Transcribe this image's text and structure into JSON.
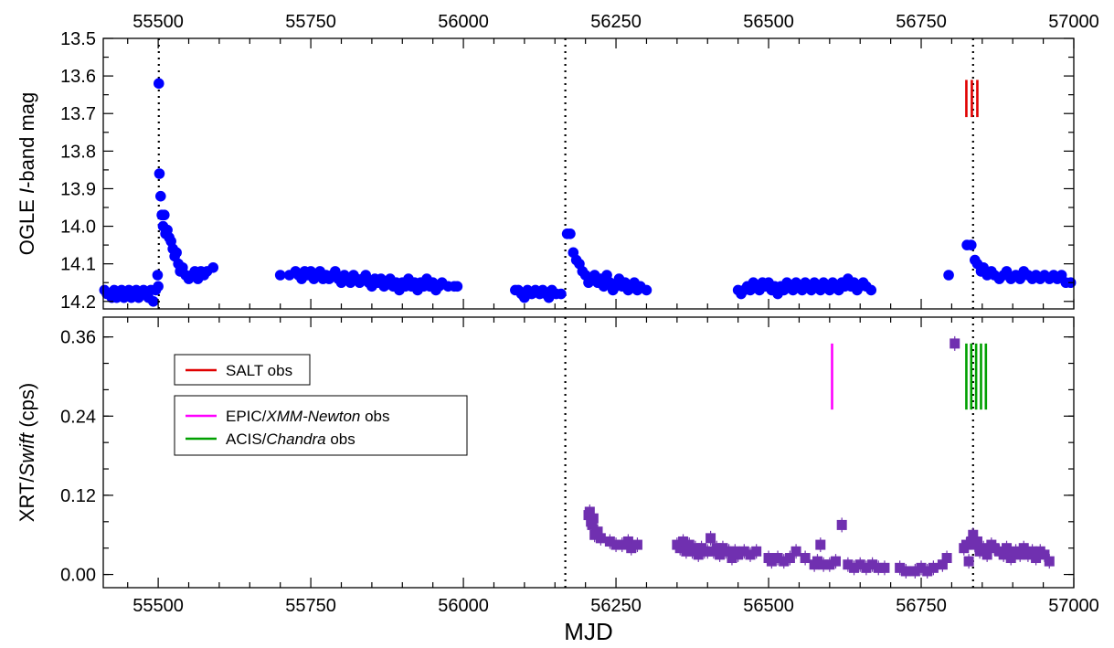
{
  "chart_data": [
    {
      "type": "scatter",
      "panel": "top",
      "ylabel_prefix": "OGLE ",
      "ylabel_italic": "I",
      "ylabel_suffix": "-band mag",
      "xlabel": "",
      "top_axis_ticks": [
        "55500",
        "55750",
        "56000",
        "56250",
        "56500",
        "56750",
        "57000"
      ],
      "xlim": [
        55410,
        57000
      ],
      "ylim": [
        13.5,
        14.22
      ],
      "y_inverted": true,
      "yticks": [
        "13.5",
        "13.6",
        "13.7",
        "13.8",
        "13.9",
        "14.0",
        "14.1",
        "14.2"
      ],
      "marker_color": "#0000ff",
      "marker": "circle",
      "ogle_points": [
        [
          55412,
          14.17
        ],
        [
          55416,
          14.18
        ],
        [
          55420,
          14.18
        ],
        [
          55424,
          14.19
        ],
        [
          55428,
          14.17
        ],
        [
          55432,
          14.19
        ],
        [
          55436,
          14.18
        ],
        [
          55440,
          14.17
        ],
        [
          55444,
          14.19
        ],
        [
          55448,
          14.18
        ],
        [
          55452,
          14.17
        ],
        [
          55456,
          14.19
        ],
        [
          55460,
          14.18
        ],
        [
          55464,
          14.17
        ],
        [
          55468,
          14.19
        ],
        [
          55472,
          14.18
        ],
        [
          55476,
          14.17
        ],
        [
          55480,
          14.18
        ],
        [
          55484,
          14.19
        ],
        [
          55488,
          14.17
        ],
        [
          55492,
          14.2
        ],
        [
          55496,
          14.17
        ],
        [
          55499,
          14.13
        ],
        [
          55500,
          14.16
        ],
        [
          55501,
          13.62
        ],
        [
          55502,
          13.86
        ],
        [
          55504,
          13.92
        ],
        [
          55506,
          13.97
        ],
        [
          55508,
          14.0
        ],
        [
          55510,
          13.97
        ],
        [
          55512,
          14.02
        ],
        [
          55515,
          14.01
        ],
        [
          55518,
          14.03
        ],
        [
          55521,
          14.04
        ],
        [
          55524,
          14.06
        ],
        [
          55527,
          14.08
        ],
        [
          55530,
          14.07
        ],
        [
          55533,
          14.1
        ],
        [
          55536,
          14.12
        ],
        [
          55540,
          14.11
        ],
        [
          55545,
          14.13
        ],
        [
          55550,
          14.14
        ],
        [
          55555,
          14.13
        ],
        [
          55560,
          14.12
        ],
        [
          55565,
          14.14
        ],
        [
          55570,
          14.12
        ],
        [
          55575,
          14.13
        ],
        [
          55580,
          14.12
        ],
        [
          55590,
          14.11
        ],
        [
          55700,
          14.13
        ],
        [
          55715,
          14.13
        ],
        [
          55725,
          14.12
        ],
        [
          55730,
          14.13
        ],
        [
          55735,
          14.14
        ],
        [
          55740,
          14.12
        ],
        [
          55745,
          14.13
        ],
        [
          55750,
          14.12
        ],
        [
          55755,
          14.14
        ],
        [
          55760,
          14.13
        ],
        [
          55765,
          14.12
        ],
        [
          55770,
          14.14
        ],
        [
          55775,
          14.13
        ],
        [
          55780,
          14.14
        ],
        [
          55785,
          14.13
        ],
        [
          55790,
          14.12
        ],
        [
          55795,
          14.14
        ],
        [
          55800,
          14.15
        ],
        [
          55805,
          14.13
        ],
        [
          55810,
          14.14
        ],
        [
          55815,
          14.15
        ],
        [
          55820,
          14.13
        ],
        [
          55825,
          14.14
        ],
        [
          55830,
          14.15
        ],
        [
          55835,
          14.14
        ],
        [
          55840,
          14.13
        ],
        [
          55845,
          14.15
        ],
        [
          55850,
          14.16
        ],
        [
          55855,
          14.14
        ],
        [
          55860,
          14.15
        ],
        [
          55865,
          14.14
        ],
        [
          55870,
          14.16
        ],
        [
          55875,
          14.15
        ],
        [
          55880,
          14.14
        ],
        [
          55885,
          14.16
        ],
        [
          55890,
          14.15
        ],
        [
          55895,
          14.17
        ],
        [
          55900,
          14.15
        ],
        [
          55905,
          14.16
        ],
        [
          55910,
          14.14
        ],
        [
          55915,
          14.16
        ],
        [
          55920,
          14.15
        ],
        [
          55925,
          14.17
        ],
        [
          55930,
          14.15
        ],
        [
          55935,
          14.16
        ],
        [
          55940,
          14.14
        ],
        [
          55945,
          14.16
        ],
        [
          55950,
          14.15
        ],
        [
          55955,
          14.17
        ],
        [
          55960,
          14.16
        ],
        [
          55965,
          14.15
        ],
        [
          55975,
          14.16
        ],
        [
          55985,
          14.16
        ],
        [
          55990,
          14.16
        ],
        [
          56085,
          14.17
        ],
        [
          56090,
          14.17
        ],
        [
          56095,
          14.18
        ],
        [
          56100,
          14.19
        ],
        [
          56105,
          14.17
        ],
        [
          56112,
          14.18
        ],
        [
          56118,
          14.17
        ],
        [
          56125,
          14.18
        ],
        [
          56130,
          14.17
        ],
        [
          56135,
          14.18
        ],
        [
          56140,
          14.19
        ],
        [
          56145,
          14.17
        ],
        [
          56152,
          14.18
        ],
        [
          56160,
          14.18
        ],
        [
          56170,
          14.02
        ],
        [
          56175,
          14.02
        ],
        [
          56180,
          14.07
        ],
        [
          56185,
          14.09
        ],
        [
          56190,
          14.1
        ],
        [
          56195,
          14.12
        ],
        [
          56200,
          14.13
        ],
        [
          56205,
          14.15
        ],
        [
          56210,
          14.14
        ],
        [
          56215,
          14.13
        ],
        [
          56220,
          14.15
        ],
        [
          56225,
          14.14
        ],
        [
          56230,
          14.16
        ],
        [
          56235,
          14.13
        ],
        [
          56240,
          14.15
        ],
        [
          56245,
          14.17
        ],
        [
          56250,
          14.16
        ],
        [
          56255,
          14.14
        ],
        [
          56260,
          14.16
        ],
        [
          56265,
          14.15
        ],
        [
          56270,
          14.17
        ],
        [
          56275,
          14.16
        ],
        [
          56280,
          14.15
        ],
        [
          56285,
          14.17
        ],
        [
          56290,
          14.16
        ],
        [
          56300,
          14.17
        ],
        [
          56450,
          14.17
        ],
        [
          56455,
          14.18
        ],
        [
          56460,
          14.17
        ],
        [
          56465,
          14.16
        ],
        [
          56470,
          14.17
        ],
        [
          56475,
          14.15
        ],
        [
          56480,
          14.16
        ],
        [
          56485,
          14.17
        ],
        [
          56490,
          14.15
        ],
        [
          56495,
          14.16
        ],
        [
          56500,
          14.15
        ],
        [
          56505,
          14.17
        ],
        [
          56510,
          14.16
        ],
        [
          56515,
          14.18
        ],
        [
          56520,
          14.16
        ],
        [
          56525,
          14.17
        ],
        [
          56530,
          14.15
        ],
        [
          56535,
          14.16
        ],
        [
          56540,
          14.17
        ],
        [
          56545,
          14.15
        ],
        [
          56550,
          14.16
        ],
        [
          56555,
          14.17
        ],
        [
          56560,
          14.15
        ],
        [
          56565,
          14.16
        ],
        [
          56570,
          14.17
        ],
        [
          56575,
          14.15
        ],
        [
          56580,
          14.16
        ],
        [
          56585,
          14.17
        ],
        [
          56590,
          14.15
        ],
        [
          56595,
          14.16
        ],
        [
          56600,
          14.17
        ],
        [
          56605,
          14.15
        ],
        [
          56610,
          14.16
        ],
        [
          56615,
          14.17
        ],
        [
          56620,
          14.15
        ],
        [
          56625,
          14.16
        ],
        [
          56630,
          14.14
        ],
        [
          56635,
          14.16
        ],
        [
          56640,
          14.15
        ],
        [
          56645,
          14.17
        ],
        [
          56650,
          14.16
        ],
        [
          56655,
          14.15
        ],
        [
          56660,
          14.16
        ],
        [
          56668,
          14.17
        ],
        [
          56795,
          14.13
        ],
        [
          56825,
          14.05
        ],
        [
          56832,
          14.05
        ],
        [
          56838,
          14.09
        ],
        [
          56842,
          14.1
        ],
        [
          56848,
          14.12
        ],
        [
          56852,
          14.11
        ],
        [
          56858,
          14.13
        ],
        [
          56865,
          14.12
        ],
        [
          56870,
          14.13
        ],
        [
          56878,
          14.14
        ],
        [
          56885,
          14.13
        ],
        [
          56890,
          14.12
        ],
        [
          56897,
          14.14
        ],
        [
          56905,
          14.13
        ],
        [
          56912,
          14.14
        ],
        [
          56918,
          14.12
        ],
        [
          56925,
          14.13
        ],
        [
          56932,
          14.14
        ],
        [
          56938,
          14.13
        ],
        [
          56945,
          14.14
        ],
        [
          56952,
          14.13
        ],
        [
          56960,
          14.14
        ],
        [
          56967,
          14.13
        ],
        [
          56973,
          14.14
        ],
        [
          56980,
          14.13
        ],
        [
          56987,
          14.15
        ],
        [
          56995,
          14.15
        ]
      ],
      "salt_marks": {
        "color": "#e00000",
        "x": [
          56824,
          56833,
          56842
        ],
        "y_range": [
          13.63,
          13.69
        ]
      },
      "vlines": [
        55501,
        56167,
        56835
      ]
    },
    {
      "type": "scatter",
      "panel": "bottom",
      "ylabel_prefix": "XRT/",
      "ylabel_italic": "Swift",
      "ylabel_suffix": " (cps)",
      "xlabel": "MJD",
      "xticks": [
        "55500",
        "55750",
        "56000",
        "56250",
        "56500",
        "56750",
        "57000"
      ],
      "xlim": [
        55410,
        57000
      ],
      "ylim": [
        -0.02,
        0.39
      ],
      "yticks": [
        "0.00",
        "0.12",
        "0.24",
        "0.36"
      ],
      "marker_color": "#7030b0",
      "marker": "square",
      "xrt_points": [
        [
          56205,
          0.09
        ],
        [
          56207,
          0.095
        ],
        [
          56209,
          0.08
        ],
        [
          56211,
          0.075
        ],
        [
          56213,
          0.085
        ],
        [
          56215,
          0.06
        ],
        [
          56220,
          0.065
        ],
        [
          56225,
          0.055
        ],
        [
          56240,
          0.05
        ],
        [
          56250,
          0.045
        ],
        [
          56260,
          0.045
        ],
        [
          56270,
          0.05
        ],
        [
          56275,
          0.04
        ],
        [
          56285,
          0.045
        ],
        [
          56350,
          0.045
        ],
        [
          56355,
          0.04
        ],
        [
          56360,
          0.05
        ],
        [
          56365,
          0.035
        ],
        [
          56370,
          0.045
        ],
        [
          56375,
          0.035
        ],
        [
          56380,
          0.04
        ],
        [
          56385,
          0.03
        ],
        [
          56390,
          0.04
        ],
        [
          56395,
          0.035
        ],
        [
          56400,
          0.035
        ],
        [
          56405,
          0.055
        ],
        [
          56410,
          0.035
        ],
        [
          56415,
          0.04
        ],
        [
          56420,
          0.03
        ],
        [
          56425,
          0.04
        ],
        [
          56430,
          0.035
        ],
        [
          56435,
          0.035
        ],
        [
          56440,
          0.025
        ],
        [
          56445,
          0.035
        ],
        [
          56450,
          0.03
        ],
        [
          56460,
          0.035
        ],
        [
          56470,
          0.03
        ],
        [
          56480,
          0.035
        ],
        [
          56500,
          0.025
        ],
        [
          56505,
          0.02
        ],
        [
          56515,
          0.025
        ],
        [
          56525,
          0.02
        ],
        [
          56535,
          0.025
        ],
        [
          56545,
          0.035
        ],
        [
          56560,
          0.025
        ],
        [
          56575,
          0.015
        ],
        [
          56580,
          0.02
        ],
        [
          56585,
          0.045
        ],
        [
          56590,
          0.015
        ],
        [
          56600,
          0.015
        ],
        [
          56610,
          0.02
        ],
        [
          56620,
          0.075
        ],
        [
          56630,
          0.015
        ],
        [
          56640,
          0.01
        ],
        [
          56650,
          0.015
        ],
        [
          56660,
          0.01
        ],
        [
          56670,
          0.015
        ],
        [
          56680,
          0.01
        ],
        [
          56690,
          0.01
        ],
        [
          56715,
          0.01
        ],
        [
          56725,
          0.005
        ],
        [
          56740,
          0.005
        ],
        [
          56750,
          0.01
        ],
        [
          56760,
          0.005
        ],
        [
          56770,
          0.01
        ],
        [
          56785,
          0.015
        ],
        [
          56792,
          0.025
        ],
        [
          56805,
          0.35
        ],
        [
          56820,
          0.04
        ],
        [
          56824,
          0.045
        ],
        [
          56828,
          0.02
        ],
        [
          56832,
          0.05
        ],
        [
          56835,
          0.06
        ],
        [
          56838,
          0.045
        ],
        [
          56842,
          0.05
        ],
        [
          56846,
          0.035
        ],
        [
          56852,
          0.04
        ],
        [
          56858,
          0.03
        ],
        [
          56865,
          0.045
        ],
        [
          56870,
          0.04
        ],
        [
          56878,
          0.035
        ],
        [
          56885,
          0.03
        ],
        [
          56890,
          0.04
        ],
        [
          56897,
          0.025
        ],
        [
          56905,
          0.035
        ],
        [
          56912,
          0.03
        ],
        [
          56918,
          0.04
        ],
        [
          56925,
          0.03
        ],
        [
          56932,
          0.035
        ],
        [
          56938,
          0.025
        ],
        [
          56945,
          0.035
        ],
        [
          56952,
          0.03
        ],
        [
          56960,
          0.02
        ]
      ],
      "xmm_marks": {
        "color": "#ff00ff",
        "x": [
          56604
        ],
        "y_range": [
          0.25,
          0.35
        ]
      },
      "chandra_marks": {
        "color": "#00a000",
        "x": [
          56824,
          56832,
          56840,
          56848,
          56856
        ],
        "y_range": [
          0.25,
          0.35
        ]
      },
      "vlines": [
        56167,
        56835
      ],
      "legend": {
        "salt": "SALT obs",
        "salt_color": "#e00000",
        "xmm_prefix": "EPIC/",
        "xmm_italic": "XMM-Newton",
        "xmm_suffix": " obs",
        "xmm_color": "#ff00ff",
        "chandra_prefix": "ACIS/",
        "chandra_italic": "Chandra",
        "chandra_suffix": " obs",
        "chandra_color": "#00a000"
      }
    }
  ]
}
